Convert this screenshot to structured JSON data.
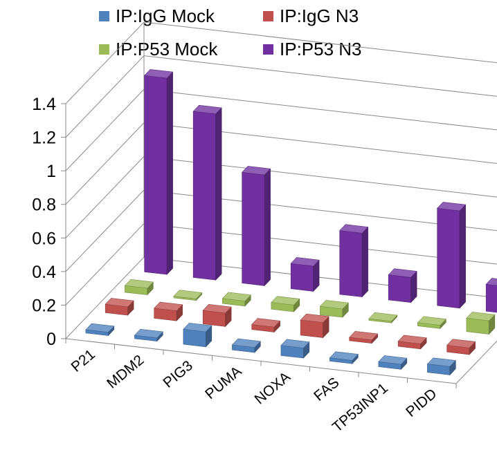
{
  "chart_data": {
    "type": "bar",
    "title": "",
    "xlabel": "",
    "ylabel": "",
    "categories": [
      "P21",
      "MDM2",
      "PIG3",
      "PUMA",
      "NOXA",
      "FAS",
      "TP53INP1",
      "PIDD"
    ],
    "ylim": [
      0,
      1.4
    ],
    "yticks": [
      "0",
      "0.2",
      "0.4",
      "0.6",
      "0.8",
      "1",
      "1.2",
      "1.4"
    ],
    "grid": true,
    "legend_position": "top",
    "series": [
      {
        "name": "IP:IgG Mock",
        "color": "#4f81bd",
        "values": [
          0.02,
          0.02,
          0.09,
          0.03,
          0.06,
          0.02,
          0.03,
          0.05
        ]
      },
      {
        "name": "IP:IgG N3",
        "color": "#c0504d",
        "values": [
          0.05,
          0.06,
          0.08,
          0.03,
          0.09,
          0.02,
          0.03,
          0.04
        ]
      },
      {
        "name": "IP:P53 Mock",
        "color": "#9bbb59",
        "values": [
          0.04,
          0.01,
          0.03,
          0.04,
          0.05,
          0.01,
          0.02,
          0.08
        ]
      },
      {
        "name": "IP:P53 N3",
        "color": "#7030a0",
        "values": [
          1.17,
          0.99,
          0.66,
          0.15,
          0.38,
          0.15,
          0.58,
          0.16
        ]
      }
    ]
  }
}
